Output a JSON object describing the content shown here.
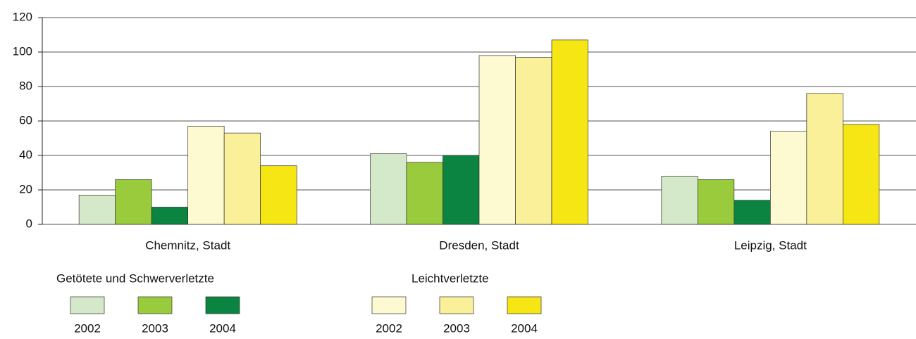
{
  "chart_data": {
    "type": "bar",
    "categories": [
      "Chemnitz, Stadt",
      "Dresden, Stadt",
      "Leipzig, Stadt"
    ],
    "legend_titles": [
      "Getötete und Schwerverletzte",
      "Leichtverletzte"
    ],
    "series": [
      {
        "name": "2002",
        "color": "#d3e9c9",
        "values": [
          17,
          41,
          28
        ]
      },
      {
        "name": "2003",
        "color": "#9acb3c",
        "values": [
          26,
          36,
          26
        ]
      },
      {
        "name": "2004",
        "color": "#0a8440",
        "values": [
          10,
          40,
          14
        ]
      },
      {
        "name": "2002",
        "color": "#fdf9d0",
        "values": [
          57,
          98,
          54
        ]
      },
      {
        "name": "2003",
        "color": "#f9f099",
        "values": [
          53,
          97,
          76
        ]
      },
      {
        "name": "2004",
        "color": "#f5e614",
        "values": [
          34,
          107,
          58
        ]
      }
    ],
    "ylim": [
      0,
      120
    ],
    "yticks": [
      0,
      20,
      40,
      60,
      80,
      100,
      120
    ],
    "grid": true
  }
}
